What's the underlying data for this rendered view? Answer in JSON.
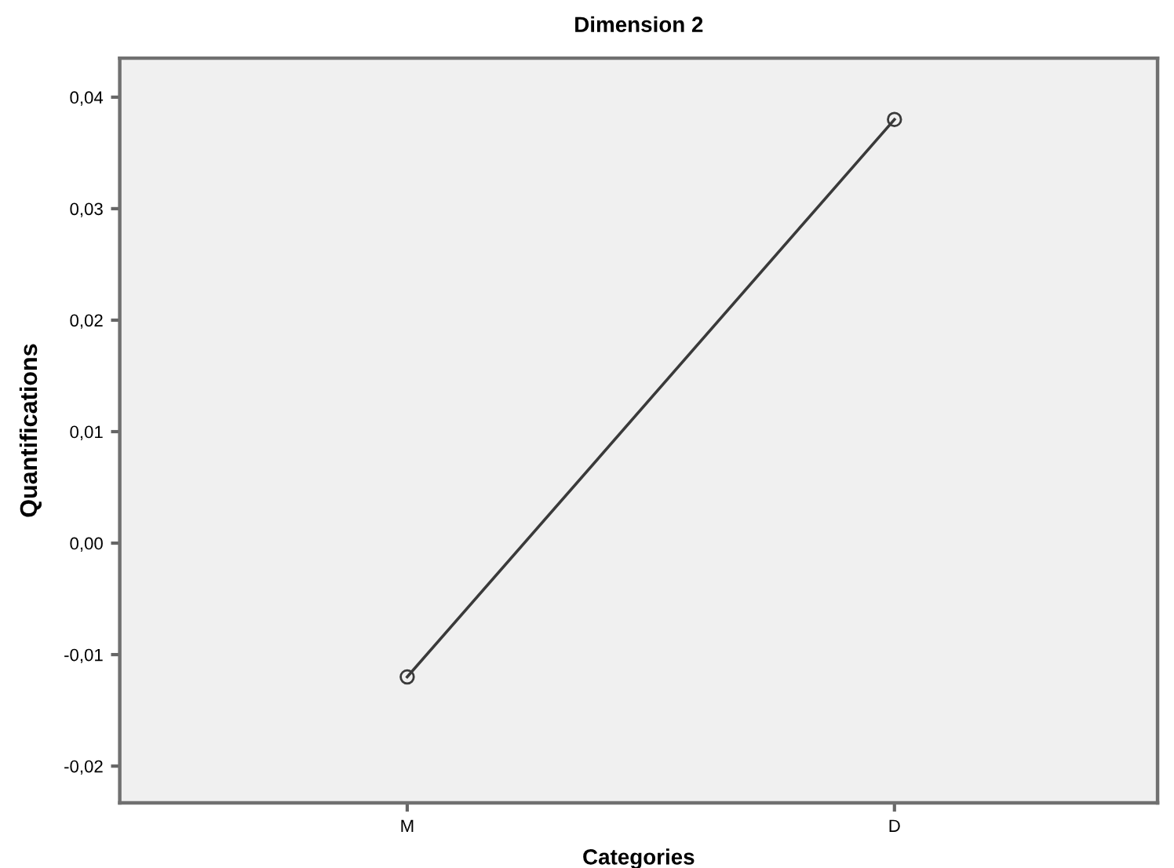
{
  "chart_data": {
    "type": "line",
    "title": "Dimension 2",
    "xlabel": "Categories",
    "ylabel": "Quantifications",
    "categories": [
      "M",
      "D"
    ],
    "series": [
      {
        "color": "#3a3a3a",
        "values": [
          -0.012,
          0.038
        ]
      }
    ],
    "ylim": [
      -0.0233,
      0.0435
    ],
    "yticks": [
      {
        "value": -0.02,
        "label": "-0,02"
      },
      {
        "value": -0.01,
        "label": "-0,01"
      },
      {
        "value": 0.0,
        "label": "0,00"
      },
      {
        "value": 0.01,
        "label": "0,01"
      },
      {
        "value": 0.02,
        "label": "0,02"
      },
      {
        "value": 0.03,
        "label": "0,03"
      },
      {
        "value": 0.04,
        "label": "0,04"
      }
    ],
    "marker": "circle",
    "line_style": "solid",
    "grid": false,
    "legend": false
  }
}
